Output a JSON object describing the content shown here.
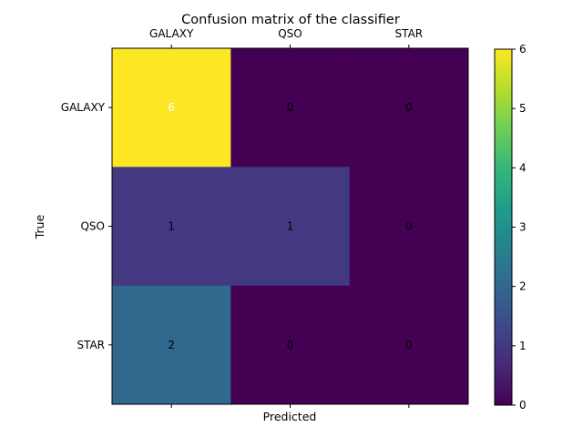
{
  "chart_data": {
    "type": "heatmap",
    "title": "Confusion matrix of the classifier",
    "xlabel": "Predicted",
    "ylabel": "True",
    "x_categories": [
      "GALAXY",
      "QSO",
      "STAR"
    ],
    "y_categories": [
      "GALAXY",
      "QSO",
      "STAR"
    ],
    "values": [
      [
        6,
        0,
        0
      ],
      [
        1,
        1,
        0
      ],
      [
        2,
        0,
        0
      ]
    ],
    "colormap": "viridis",
    "color_range": [
      0,
      6
    ],
    "colorbar_ticks": [
      "0",
      "1",
      "2",
      "3",
      "4",
      "5",
      "6"
    ],
    "x_tick_position": "top",
    "grid": false
  }
}
